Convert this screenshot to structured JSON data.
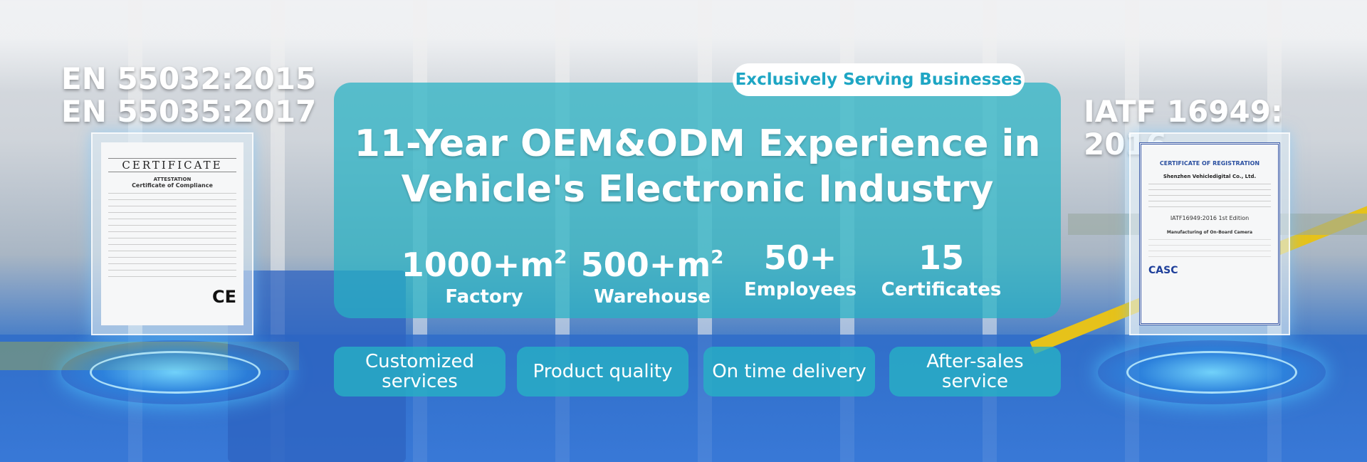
{
  "left_certs": {
    "line1": "EN 55032:2015",
    "line2": "EN 55035:2017",
    "doc": {
      "heading": "CERTIFICATE",
      "sub1": "ATTESTATION",
      "sub2": "Certificate of Compliance",
      "mark": "CE"
    }
  },
  "right_cert": {
    "title": "IATF 16949: 2016",
    "doc": {
      "heading": "CERTIFICATE OF REGISTRATION",
      "company": "Shenzhen Vehicledigital Co., Ltd.",
      "standard": "IATF16949:2016 1st Edition",
      "scope": "Manufacturing of On-Board Camera",
      "logo": "CASC"
    }
  },
  "badge": "Exclusively Serving Businesses",
  "headline": {
    "line1": "11-Year OEM&ODM Experience in",
    "line2": "Vehicle's Electronic Industry"
  },
  "stats": [
    {
      "value": "1000+m",
      "sup": "2",
      "label": "Factory"
    },
    {
      "value": "500+m",
      "sup": "2",
      "label": "Warehouse"
    },
    {
      "value": "50+",
      "sup": "",
      "label": "Employees"
    },
    {
      "value": "15",
      "sup": "",
      "label": "Certificates"
    }
  ],
  "features": [
    "Customized services",
    "Product quality",
    "On time delivery",
    "After-sales service"
  ],
  "colors": {
    "accent": "#26b2c4",
    "badge_text": "#1ea6c4",
    "floor": "#2f6fd0"
  }
}
